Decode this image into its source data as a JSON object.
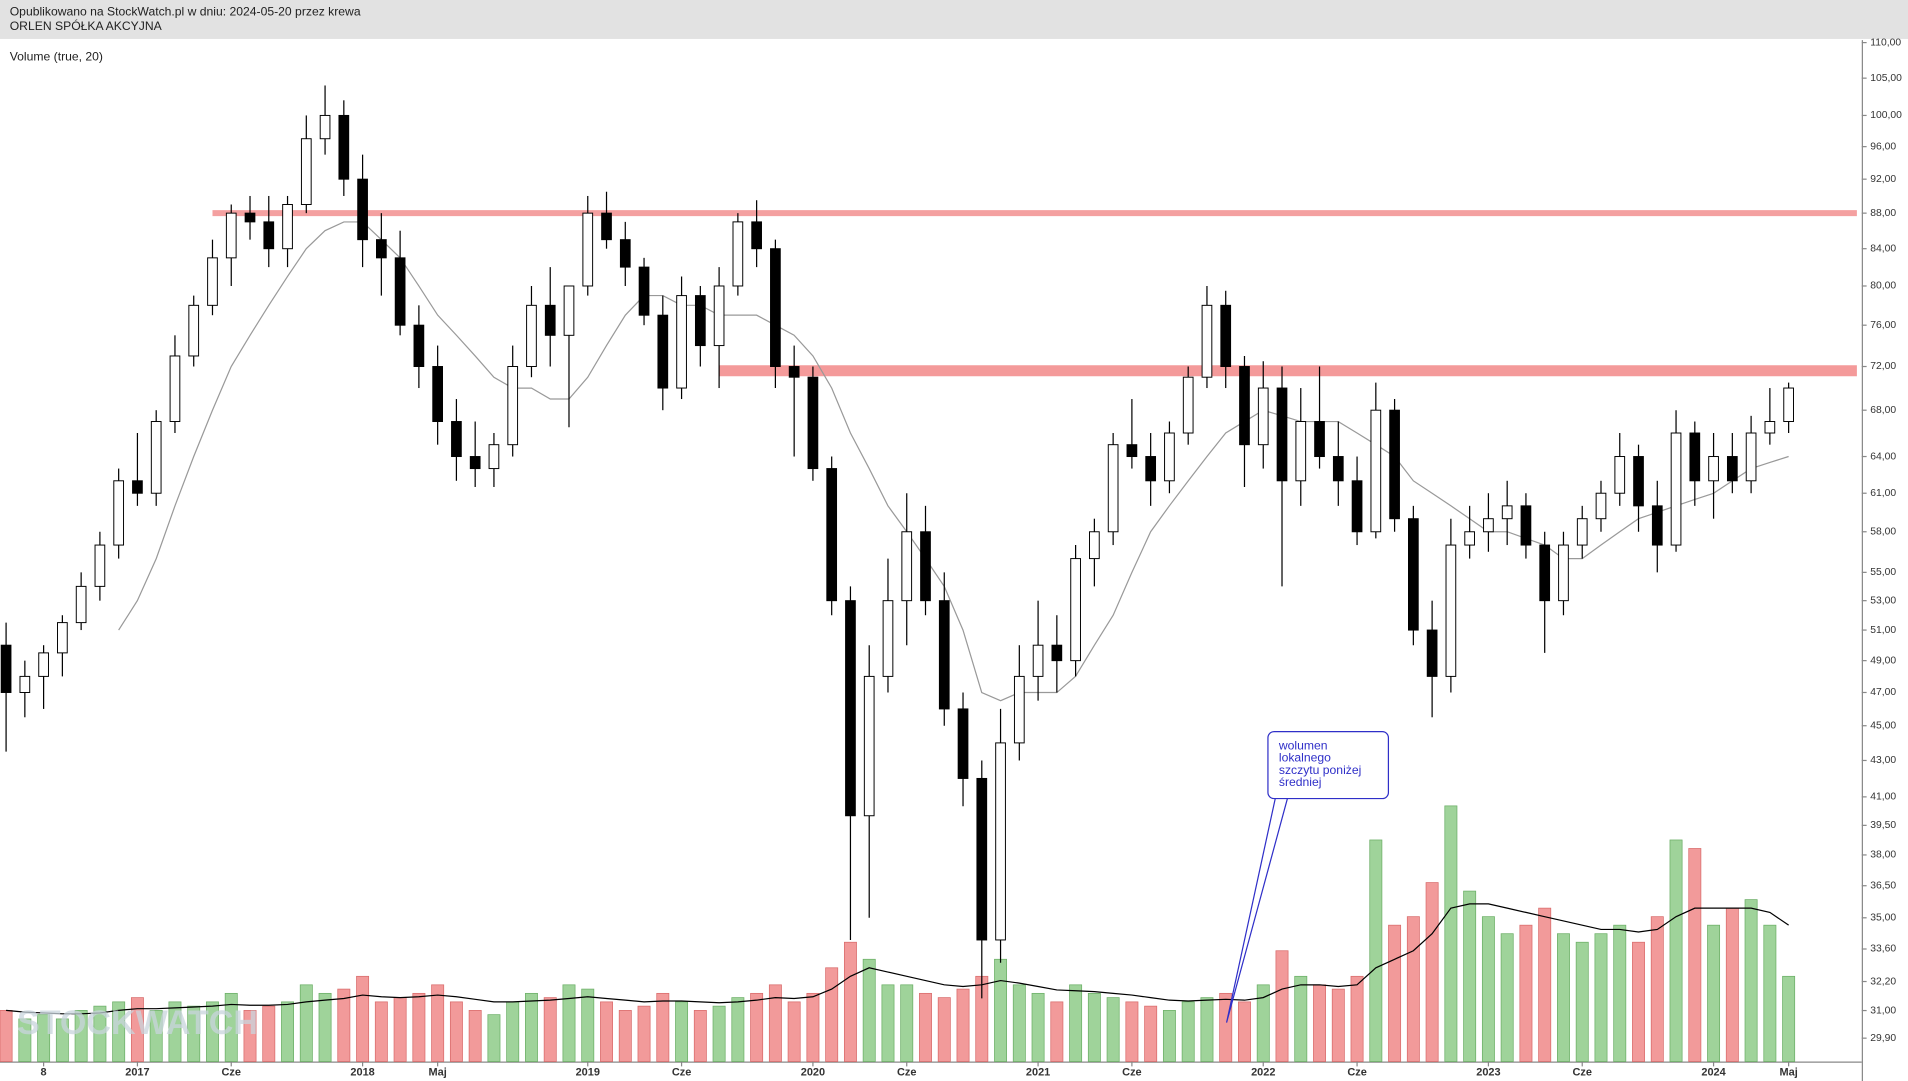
{
  "chart_data": {
    "type": "candlestick",
    "header": "Opublikowano na StockWatch.pl w dniu: 2024-05-20 przez krewa",
    "title": "ORLEN SPÓŁKA AKCYJNA",
    "indicator_label": "Volume (true, 20)",
    "watermark": "STOCKWATCH",
    "log_scale": true,
    "ylim": [
      29.0,
      110.35
    ],
    "yticks": [
      {
        "value": 110,
        "label": "110,00"
      },
      {
        "value": 105,
        "label": "105,00"
      },
      {
        "value": 100,
        "label": "100,00"
      },
      {
        "value": 96,
        "label": "96,00"
      },
      {
        "value": 92,
        "label": "92,00"
      },
      {
        "value": 88,
        "label": "88,00"
      },
      {
        "value": 84,
        "label": "84,00"
      },
      {
        "value": 80,
        "label": "80,00"
      },
      {
        "value": 76,
        "label": "76,00"
      },
      {
        "value": 72,
        "label": "72,00"
      },
      {
        "value": 68,
        "label": "68,00"
      },
      {
        "value": 64,
        "label": "64,00"
      },
      {
        "value": 61,
        "label": "61,00"
      },
      {
        "value": 58,
        "label": "58,00"
      },
      {
        "value": 55,
        "label": "55,00"
      },
      {
        "value": 53,
        "label": "53,00"
      },
      {
        "value": 51,
        "label": "51,00"
      },
      {
        "value": 49,
        "label": "49,00"
      },
      {
        "value": 47,
        "label": "47,00"
      },
      {
        "value": 45,
        "label": "45,00"
      },
      {
        "value": 43,
        "label": "43,00"
      },
      {
        "value": 41,
        "label": "41,00"
      },
      {
        "value": 39.5,
        "label": "39,50"
      },
      {
        "value": 38,
        "label": "38,00"
      },
      {
        "value": 36.5,
        "label": "36,50"
      },
      {
        "value": 35,
        "label": "35,00"
      },
      {
        "value": 33.6,
        "label": "33,60"
      },
      {
        "value": 32.2,
        "label": "32,20"
      },
      {
        "value": 31,
        "label": "31,00"
      },
      {
        "value": 29.9,
        "label": "29,90"
      }
    ],
    "categories": [
      null,
      null,
      "8",
      null,
      null,
      null,
      null,
      "2017",
      null,
      null,
      null,
      null,
      "Cze",
      null,
      null,
      null,
      null,
      null,
      null,
      "2018",
      null,
      null,
      null,
      "Maj",
      null,
      null,
      null,
      null,
      null,
      null,
      null,
      "2019",
      null,
      null,
      null,
      null,
      "Cze",
      null,
      null,
      null,
      null,
      null,
      null,
      "2020",
      null,
      null,
      null,
      null,
      "Cze",
      null,
      null,
      null,
      null,
      null,
      null,
      "2021",
      null,
      null,
      null,
      null,
      "Cze",
      null,
      null,
      null,
      null,
      null,
      null,
      "2022",
      null,
      null,
      null,
      null,
      "Cze",
      null,
      null,
      null,
      null,
      null,
      null,
      "2023",
      null,
      null,
      null,
      null,
      "Cze",
      null,
      null,
      null,
      null,
      null,
      null,
      "2024",
      null,
      null,
      null,
      "Maj"
    ],
    "open": [
      50,
      47,
      48,
      49.5,
      51.5,
      54,
      57,
      62,
      61,
      67,
      73,
      78,
      83,
      88,
      87,
      84,
      89,
      97,
      100,
      92,
      85,
      83,
      76,
      72,
      67,
      64,
      63,
      65,
      72,
      78,
      75,
      80,
      88,
      85,
      82,
      77,
      70,
      79,
      74,
      80,
      87,
      84,
      72,
      71,
      63,
      53,
      40,
      48,
      53,
      58,
      53,
      46,
      42,
      34,
      44,
      48,
      50,
      49,
      56,
      58,
      65,
      64,
      62,
      66,
      71,
      78,
      72,
      65,
      70,
      62,
      67,
      64,
      62,
      58,
      68,
      59,
      51,
      48,
      57,
      58,
      59,
      60,
      57,
      53,
      57,
      59,
      61,
      64,
      60,
      57,
      66,
      62,
      64,
      62,
      66,
      67
    ],
    "high": [
      51.5,
      49,
      50,
      52,
      55,
      58,
      63,
      66,
      68,
      75,
      79,
      85,
      89,
      90,
      90,
      90,
      100,
      104,
      102,
      95,
      88,
      86,
      78,
      74,
      69,
      67,
      66,
      74,
      80,
      82,
      80,
      90,
      90.5,
      87,
      83,
      79,
      81,
      80,
      82,
      88,
      89.5,
      85,
      74,
      72,
      64,
      54,
      50,
      56,
      61,
      60,
      55,
      47,
      43,
      46,
      50,
      53,
      52,
      57,
      59,
      66,
      69,
      66,
      67,
      72,
      80,
      79.5,
      73,
      72.5,
      72,
      70,
      72,
      67,
      64,
      70.5,
      69,
      60,
      53,
      59,
      60,
      61,
      62,
      61,
      58,
      58,
      60,
      62,
      66,
      65,
      62,
      68,
      67,
      66,
      66,
      67.5,
      70,
      70.5
    ],
    "low": [
      43.5,
      45.5,
      46,
      48,
      51,
      53,
      56,
      60,
      60,
      66,
      72,
      77,
      80,
      85,
      82,
      82,
      88,
      95,
      90,
      82,
      79,
      75,
      70,
      65,
      62,
      61.5,
      61.5,
      64,
      71,
      72,
      66.5,
      79,
      84,
      80,
      76,
      68,
      69,
      72,
      70,
      79,
      82,
      70,
      64,
      62,
      52,
      34,
      35,
      47,
      50,
      52,
      45,
      40.5,
      31.5,
      33,
      43,
      46.5,
      47,
      48,
      54,
      57,
      63,
      60,
      61,
      65,
      70,
      70,
      61.5,
      63,
      54,
      60,
      63,
      60,
      57,
      57.5,
      58,
      50,
      45.5,
      47,
      56,
      56.5,
      57,
      56,
      49.5,
      52,
      56,
      58,
      60,
      58,
      55,
      56.5,
      60,
      59,
      61,
      61,
      65,
      66
    ],
    "close": [
      47,
      48,
      49.5,
      51.5,
      54,
      57,
      62,
      61,
      67,
      73,
      78,
      83,
      88,
      87,
      84,
      89,
      97,
      100,
      92,
      85,
      83,
      76,
      72,
      67,
      64,
      63,
      65,
      72,
      78,
      75,
      80,
      88,
      85,
      82,
      77,
      70,
      79,
      74,
      80,
      87,
      84,
      72,
      71,
      63,
      53,
      40,
      48,
      53,
      58,
      53,
      46,
      42,
      34,
      44,
      48,
      50,
      49,
      56,
      58,
      65,
      64,
      62,
      66,
      71,
      78,
      72,
      65,
      70,
      62,
      67,
      64,
      62,
      58,
      68,
      59,
      51,
      48,
      57,
      58,
      59,
      60,
      57,
      53,
      57,
      59,
      61,
      64,
      60,
      57,
      66,
      62,
      64,
      62,
      66,
      67,
      70
    ],
    "volume": [
      0.6,
      0.5,
      0.55,
      0.5,
      0.6,
      0.65,
      0.7,
      0.75,
      0.6,
      0.7,
      0.65,
      0.7,
      0.8,
      0.6,
      0.65,
      0.7,
      0.9,
      0.8,
      0.85,
      1.0,
      0.7,
      0.75,
      0.8,
      0.9,
      0.7,
      0.6,
      0.55,
      0.7,
      0.8,
      0.75,
      0.9,
      0.85,
      0.7,
      0.6,
      0.65,
      0.8,
      0.7,
      0.6,
      0.65,
      0.75,
      0.8,
      0.9,
      0.7,
      0.8,
      1.1,
      1.4,
      1.2,
      0.9,
      0.9,
      0.8,
      0.75,
      0.85,
      1.0,
      1.2,
      0.9,
      0.8,
      0.7,
      0.9,
      0.8,
      0.75,
      0.7,
      0.65,
      0.6,
      0.7,
      0.75,
      0.8,
      0.7,
      0.9,
      1.3,
      1.0,
      0.9,
      0.85,
      1.0,
      2.6,
      1.6,
      1.7,
      2.1,
      3.0,
      2.0,
      1.7,
      1.5,
      1.6,
      1.8,
      1.5,
      1.4,
      1.5,
      1.6,
      1.4,
      1.7,
      2.6,
      2.5,
      1.6,
      1.8,
      1.9,
      1.6,
      1.0
    ],
    "volume_ma": [
      0.6,
      0.58,
      0.57,
      0.56,
      0.56,
      0.57,
      0.6,
      0.62,
      0.62,
      0.63,
      0.64,
      0.65,
      0.67,
      0.66,
      0.66,
      0.67,
      0.7,
      0.72,
      0.74,
      0.78,
      0.76,
      0.75,
      0.76,
      0.78,
      0.76,
      0.73,
      0.7,
      0.7,
      0.71,
      0.72,
      0.74,
      0.76,
      0.74,
      0.72,
      0.7,
      0.71,
      0.71,
      0.7,
      0.69,
      0.7,
      0.72,
      0.75,
      0.74,
      0.76,
      0.85,
      1.0,
      1.1,
      1.05,
      1.0,
      0.95,
      0.9,
      0.88,
      0.9,
      0.95,
      0.92,
      0.88,
      0.84,
      0.83,
      0.82,
      0.8,
      0.78,
      0.75,
      0.72,
      0.71,
      0.72,
      0.73,
      0.72,
      0.75,
      0.85,
      0.9,
      0.9,
      0.88,
      0.9,
      1.1,
      1.2,
      1.3,
      1.5,
      1.8,
      1.85,
      1.85,
      1.8,
      1.75,
      1.7,
      1.65,
      1.6,
      1.55,
      1.55,
      1.52,
      1.55,
      1.7,
      1.8,
      1.8,
      1.8,
      1.8,
      1.75,
      1.6
    ],
    "price_ma": [
      null,
      null,
      null,
      null,
      null,
      null,
      51,
      53,
      56,
      60,
      64,
      68,
      72,
      75,
      78,
      81,
      84,
      86,
      87,
      87,
      85,
      83,
      80,
      77,
      75,
      73,
      71,
      70,
      70,
      69,
      69,
      71,
      74,
      77,
      79,
      79,
      78,
      78,
      77,
      77,
      77,
      76,
      75,
      73,
      70,
      66,
      63,
      60,
      58,
      56,
      54,
      51,
      47,
      46.5,
      47,
      47,
      47,
      48,
      50,
      52,
      55,
      58,
      60,
      62,
      64,
      66,
      67,
      68,
      67.5,
      67,
      67,
      67,
      66,
      65,
      64,
      62,
      61,
      60,
      59,
      58,
      58,
      57.5,
      57,
      56,
      56,
      57,
      58,
      59,
      59.5,
      60,
      60.5,
      61,
      62,
      63,
      63.5,
      64
    ],
    "levels": [
      {
        "value": 88,
        "from": 11,
        "color": "#f4a0a0"
      },
      {
        "value": 71.6,
        "from": 38,
        "color": "#f49a9a"
      }
    ],
    "annotation": {
      "lines": [
        "wolumen",
        "lokalnego",
        "szczytu poniżej",
        "średniej"
      ],
      "color": "#2f2fc8"
    },
    "colors": {
      "up_volume": "#9fd39a",
      "down_volume": "#f29a9a",
      "price_ma": "#999999",
      "volume_ma": "#000000"
    }
  }
}
